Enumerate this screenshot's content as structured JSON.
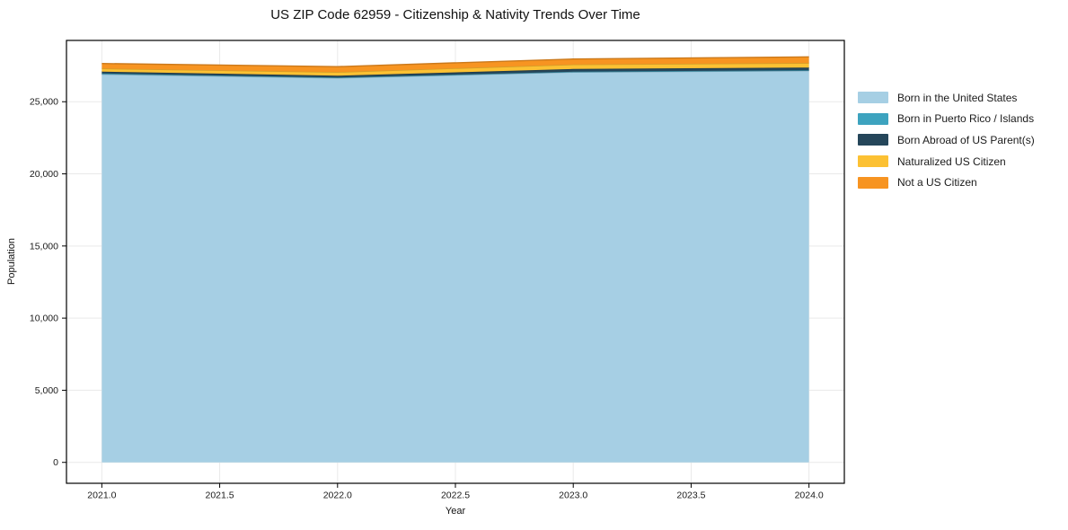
{
  "chart_data": {
    "type": "area",
    "stacked": true,
    "title": "US ZIP Code 62959 - Citizenship & Nativity Trends Over Time",
    "xlabel": "Year",
    "ylabel": "Population",
    "x": [
      2021,
      2022,
      2023,
      2024
    ],
    "series": [
      {
        "name": "Born in the United States",
        "color": "#a6cfe4",
        "values": [
          26900,
          26650,
          27050,
          27150
        ]
      },
      {
        "name": "Born in Puerto Rico / Islands",
        "color": "#3da3bf",
        "values": [
          60,
          30,
          30,
          30
        ]
      },
      {
        "name": "Born Abroad of US Parent(s)",
        "color": "#25465a",
        "values": [
          130,
          120,
          190,
          190
        ]
      },
      {
        "name": "Naturalized US Citizen",
        "color": "#fcc133",
        "values": [
          210,
          250,
          310,
          310
        ]
      },
      {
        "name": "Not a US Citizen",
        "color": "#f79421",
        "values": [
          350,
          380,
          380,
          430
        ]
      }
    ],
    "xticks": {
      "values": [
        2021.0,
        2021.5,
        2022.0,
        2022.5,
        2023.0,
        2023.5,
        2024.0
      ],
      "labels": [
        "2021.0",
        "2021.5",
        "2022.0",
        "2022.5",
        "2023.0",
        "2023.5",
        "2024.0"
      ]
    },
    "yticks": {
      "values": [
        0,
        5000,
        10000,
        15000,
        20000,
        25000
      ],
      "labels": [
        "0",
        "5,000",
        "10,000",
        "15,000",
        "20,000",
        "25,000"
      ]
    },
    "xlim": [
      2020.85,
      2024.15
    ],
    "ylim": [
      -1450,
      29250
    ],
    "grid": true,
    "grid_color": "#e9e9e9",
    "axis_color": "#000000",
    "tick_label_color": "#1a1a1a",
    "legend_position": "right"
  }
}
